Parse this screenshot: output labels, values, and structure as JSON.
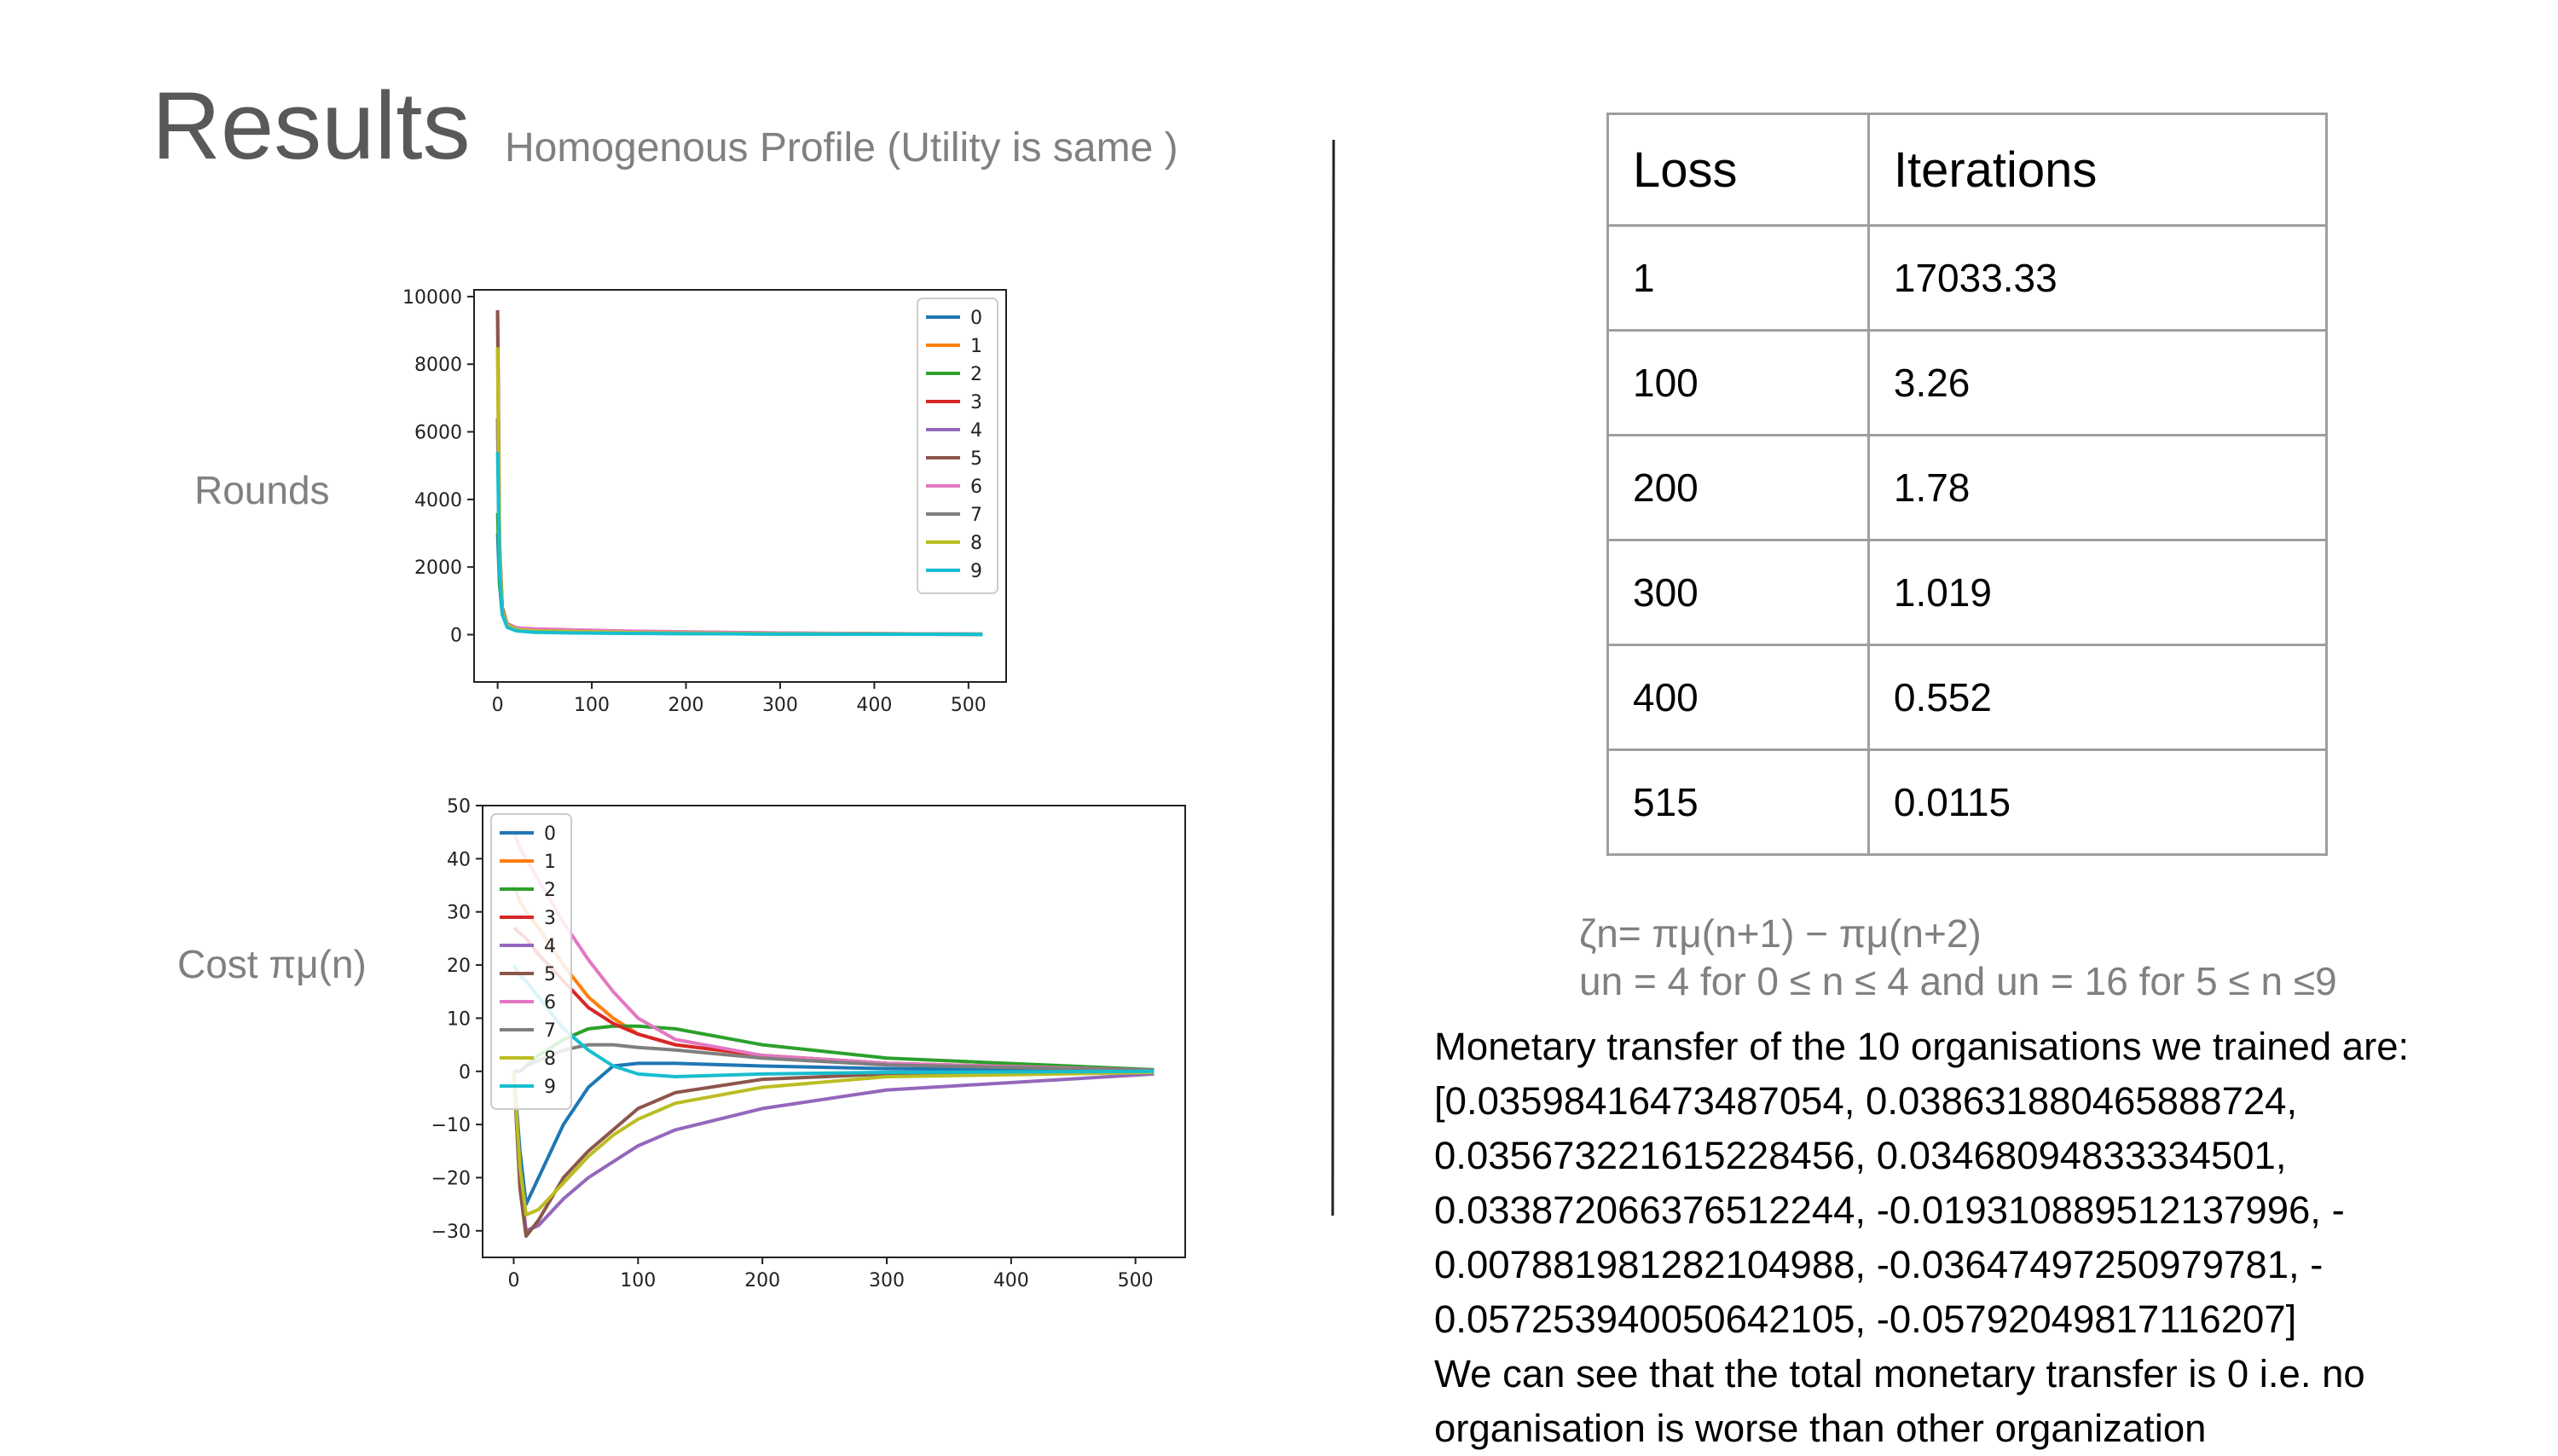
{
  "slide": {
    "title": "Results",
    "subtitle": "Homogenous Profile (Utility is same )",
    "rounds_label": "Rounds",
    "cost_label": "Cost πμ(n)"
  },
  "table": {
    "headers": [
      "Loss",
      "Iterations"
    ],
    "rows": [
      [
        "1",
        "17033.33"
      ],
      [
        "100",
        "3.26"
      ],
      [
        "200",
        "1.78"
      ],
      [
        "300",
        "1.019"
      ],
      [
        "400",
        "0.552"
      ],
      [
        "515",
        "0.0115"
      ]
    ]
  },
  "formula": {
    "line1": "ζn= πμ(n+1) − πμ(n+2)",
    "line2": "un = 4 for 0 ≤ n ≤ 4 and un = 16 for 5 ≤ n ≤9"
  },
  "transfer": {
    "lines": [
      "Monetary transfer of the 10 organisations we trained are:",
      "[0.03598416473487054, 0.03863188046588872​4,",
      "0.03567322161522845​6, 0.03468094833334501,",
      "0.03387206637651224​4, -0.019310889512137996, -",
      "0.007881981282104988, -0.03647497250979781, -",
      "0.05725394005064210​5, -0.05792049817116207]",
      "We can see that the total monetary transfer is 0 i.e. no",
      "organisation is worse than other organization"
    ]
  },
  "colors": [
    "#1f77b4",
    "#ff7f0e",
    "#2ca02c",
    "#d62728",
    "#9467bd",
    "#8c564b",
    "#e377c2",
    "#7f7f7f",
    "#bcbd22",
    "#17becf"
  ],
  "chart_data": [
    {
      "type": "line",
      "xlim": [
        -25,
        540
      ],
      "ylim": [
        -1400,
        10200
      ],
      "xticks": [
        0,
        100,
        200,
        300,
        400,
        500
      ],
      "yticks": [
        0,
        2000,
        4000,
        6000,
        8000,
        10000
      ],
      "legend": "top-right",
      "grid": false,
      "series": [
        {
          "name": "0",
          "x": [
            0,
            2,
            5,
            10,
            20,
            40,
            80,
            150,
            300,
            515
          ],
          "y": [
            3000,
            1500,
            600,
            250,
            120,
            80,
            60,
            40,
            20,
            10
          ]
        },
        {
          "name": "1",
          "x": [
            0,
            2,
            5,
            10,
            20,
            40,
            80,
            150,
            300,
            515
          ],
          "y": [
            8500,
            2500,
            700,
            250,
            130,
            90,
            70,
            50,
            25,
            10
          ]
        },
        {
          "name": "2",
          "x": [
            0,
            2,
            5,
            10,
            20,
            40,
            80,
            150,
            300,
            515
          ],
          "y": [
            3600,
            1600,
            600,
            250,
            120,
            80,
            60,
            40,
            20,
            10
          ]
        },
        {
          "name": "3",
          "x": [
            0,
            2,
            5,
            10,
            20,
            40,
            80,
            150,
            300,
            515
          ],
          "y": [
            6400,
            2200,
            650,
            260,
            140,
            100,
            80,
            55,
            30,
            12
          ]
        },
        {
          "name": "4",
          "x": [
            0,
            2,
            5,
            10,
            20,
            40,
            80,
            150,
            300,
            515
          ],
          "y": [
            9500,
            2600,
            750,
            300,
            180,
            140,
            110,
            80,
            40,
            15
          ]
        },
        {
          "name": "5",
          "x": [
            0,
            2,
            5,
            10,
            20,
            40,
            80,
            150,
            300,
            515
          ],
          "y": [
            9600,
            2700,
            800,
            320,
            200,
            150,
            120,
            90,
            45,
            15
          ]
        },
        {
          "name": "6",
          "x": [
            0,
            2,
            5,
            10,
            20,
            40,
            80,
            150,
            300,
            515
          ],
          "y": [
            6000,
            2100,
            700,
            300,
            200,
            170,
            140,
            100,
            50,
            15
          ]
        },
        {
          "name": "7",
          "x": [
            0,
            2,
            5,
            10,
            20,
            40,
            80,
            150,
            300,
            515
          ],
          "y": [
            6400,
            2100,
            650,
            250,
            120,
            90,
            70,
            50,
            25,
            10
          ]
        },
        {
          "name": "8",
          "x": [
            0,
            2,
            5,
            10,
            20,
            40,
            80,
            150,
            300,
            515
          ],
          "y": [
            8500,
            2500,
            700,
            280,
            150,
            110,
            90,
            60,
            30,
            12
          ]
        },
        {
          "name": "9",
          "x": [
            0,
            2,
            5,
            10,
            20,
            40,
            80,
            150,
            300,
            515
          ],
          "y": [
            5400,
            1900,
            600,
            220,
            110,
            70,
            50,
            35,
            18,
            8
          ]
        }
      ]
    },
    {
      "type": "line",
      "xlim": [
        -25,
        540
      ],
      "ylim": [
        -35,
        50
      ],
      "xticks": [
        0,
        100,
        200,
        300,
        400,
        500
      ],
      "yticks": [
        -30,
        -20,
        -10,
        0,
        10,
        20,
        30,
        40,
        50
      ],
      "legend": "top-left",
      "grid": false,
      "series": [
        {
          "name": "0",
          "x": [
            0,
            5,
            10,
            20,
            40,
            60,
            80,
            100,
            130,
            200,
            300,
            515
          ],
          "y": [
            0,
            -15,
            -25,
            -20,
            -10,
            -3,
            1,
            1.5,
            1.5,
            1,
            0.5,
            0.1
          ]
        },
        {
          "name": "1",
          "x": [
            0,
            5,
            10,
            20,
            40,
            60,
            80,
            100,
            130,
            200,
            300,
            515
          ],
          "y": [
            35,
            32,
            30,
            27,
            20,
            14,
            10,
            7,
            5,
            3,
            1.5,
            0.2
          ]
        },
        {
          "name": "2",
          "x": [
            0,
            5,
            10,
            20,
            40,
            60,
            80,
            100,
            130,
            200,
            300,
            515
          ],
          "y": [
            0,
            0,
            1,
            3,
            6,
            8,
            8.5,
            8.5,
            8,
            5,
            2.5,
            0.3
          ]
        },
        {
          "name": "3",
          "x": [
            0,
            5,
            10,
            20,
            40,
            60,
            80,
            100,
            130,
            200,
            300,
            515
          ],
          "y": [
            27,
            26,
            25,
            22,
            17,
            12,
            9,
            7,
            5,
            3,
            1.5,
            0.2
          ]
        },
        {
          "name": "4",
          "x": [
            0,
            5,
            10,
            20,
            40,
            60,
            80,
            100,
            130,
            200,
            300,
            515
          ],
          "y": [
            0,
            -20,
            -30,
            -29,
            -24,
            -20,
            -17,
            -14,
            -11,
            -7,
            -3.5,
            -0.5
          ]
        },
        {
          "name": "5",
          "x": [
            0,
            5,
            10,
            20,
            40,
            60,
            80,
            100,
            130,
            200,
            300,
            515
          ],
          "y": [
            0,
            -22,
            -31,
            -28,
            -20,
            -15,
            -11,
            -7,
            -4,
            -1.5,
            -0.5,
            -0.1
          ]
        },
        {
          "name": "6",
          "x": [
            0,
            5,
            10,
            20,
            40,
            60,
            80,
            100,
            130,
            200,
            300,
            515
          ],
          "y": [
            45,
            42,
            40,
            36,
            28,
            21,
            15,
            10,
            6,
            3,
            1.5,
            0.2
          ]
        },
        {
          "name": "7",
          "x": [
            0,
            5,
            10,
            20,
            40,
            60,
            80,
            100,
            130,
            200,
            300,
            515
          ],
          "y": [
            0,
            0,
            1,
            2,
            4,
            5,
            5,
            4.5,
            4,
            2.5,
            1.2,
            0.2
          ]
        },
        {
          "name": "8",
          "x": [
            0,
            5,
            10,
            20,
            40,
            60,
            80,
            100,
            130,
            200,
            300,
            515
          ],
          "y": [
            0,
            -18,
            -27,
            -26,
            -21,
            -16,
            -12,
            -9,
            -6,
            -3,
            -1,
            -0.2
          ]
        },
        {
          "name": "9",
          "x": [
            0,
            5,
            10,
            20,
            40,
            60,
            80,
            100,
            130,
            200,
            300,
            515
          ],
          "y": [
            20,
            18,
            17,
            14,
            8,
            4,
            1,
            -0.5,
            -1,
            -0.5,
            -0.2,
            0
          ]
        }
      ]
    }
  ]
}
